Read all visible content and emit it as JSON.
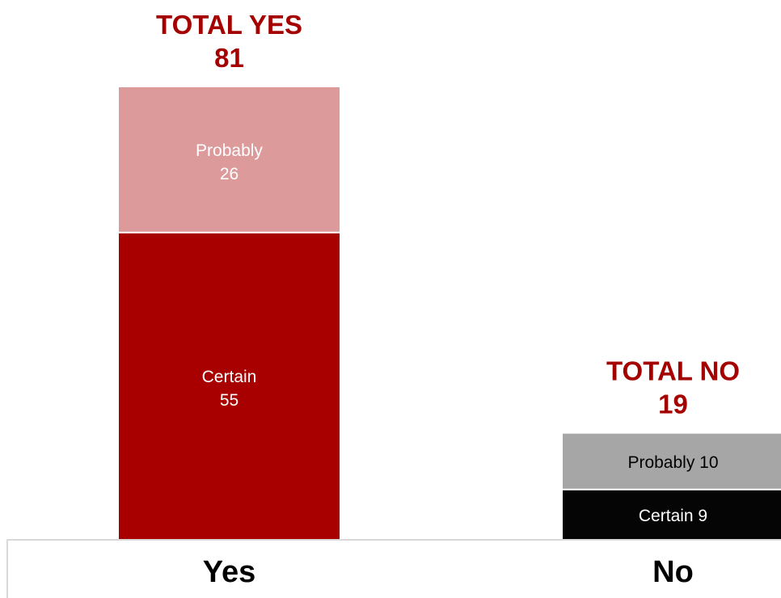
{
  "chart_data": {
    "type": "bar",
    "stacked": true,
    "categories": [
      "Yes",
      "No"
    ],
    "bars": [
      {
        "category": "Yes",
        "total_label": "TOTAL YES",
        "total_value": "81",
        "segments": [
          {
            "label": "Certain",
            "value": 55,
            "color": "#a80000",
            "text_color": "#ffffff",
            "inline": false
          },
          {
            "label": "Probably",
            "value": 26,
            "color": "#dd9a9b",
            "text_color": "#ffffff",
            "inline": false
          }
        ]
      },
      {
        "category": "No",
        "total_label": "TOTAL NO",
        "total_value": "19",
        "segments": [
          {
            "label": "Certain",
            "value": 9,
            "color": "#050505",
            "text_color": "#ffffff",
            "inline": true
          },
          {
            "label": "Probably",
            "value": 10,
            "color": "#a6a6a6",
            "text_color": "#000000",
            "inline": true
          }
        ]
      }
    ],
    "total_color": "#a50000",
    "ylim": [
      0,
      81
    ],
    "grid": false,
    "legend": "none"
  }
}
